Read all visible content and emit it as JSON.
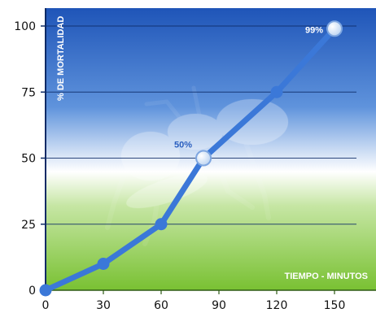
{
  "chart_data": {
    "type": "line",
    "xlabel": "TIEMPO - MINUTOS",
    "ylabel": "% DE MORTALIDAD",
    "x_ticks": [
      "0",
      "30",
      "60",
      "90",
      "120",
      "150"
    ],
    "y_ticks": [
      "0",
      "25",
      "50",
      "75",
      "100"
    ],
    "xlim": [
      0,
      150
    ],
    "ylim": [
      0,
      100
    ],
    "grid": "horizontal",
    "series": [
      {
        "x": [
          0,
          30,
          60,
          82,
          120,
          150
        ],
        "y": [
          0,
          10,
          25,
          50,
          75,
          99
        ],
        "color": "#3b78d8"
      }
    ],
    "annotations": [
      {
        "text": "50%",
        "x": 82,
        "y": 50,
        "color": "#2a5fbf"
      },
      {
        "text": "99%",
        "x": 150,
        "y": 99,
        "color": "#ffffff"
      }
    ]
  },
  "colors": {
    "line": "#3b78d8",
    "sky_top": "#1f55b8",
    "grass_bottom": "#79c132"
  }
}
